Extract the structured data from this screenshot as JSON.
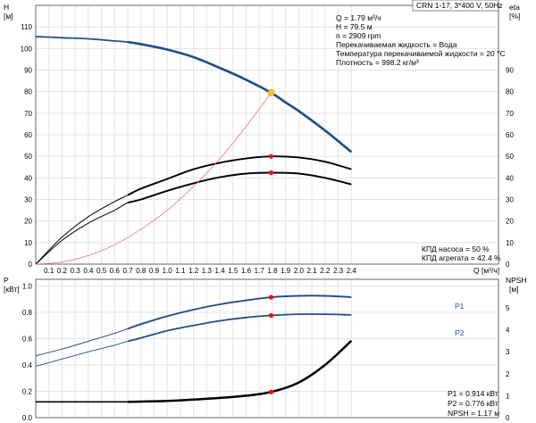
{
  "header": {
    "title": "CRN 1-17, 3*400 V, 50Hz"
  },
  "colors": {
    "head": "#1f4f87",
    "eff_pump": "#000000",
    "eff_unit": "#000000",
    "system": "#ff6b6b",
    "p1": "#1f4f87",
    "p2": "#1f4f87",
    "npsh": "#000000",
    "duty_point": "#ff0000",
    "head_duty_point": "#ffc233",
    "frame": "#666666",
    "grid": "#e3e3e3",
    "text": "#000000"
  },
  "duty_info": [
    "Q = 1.79 м³/ч",
    "H = 79.5 м",
    "n = 2909 rpm",
    "Перекачиваемая жидкость = Вода",
    "Температура перекачиваемой жидкости = 20 °C",
    "Плотность = 998.2 кг/м³"
  ],
  "efficiency_info": [
    "КПД насоса = 50 %",
    "КПД агрегата = 42.4 %"
  ],
  "power_info": [
    "P1 = 0.914 кВт",
    "P2 = 0.776 кВт",
    "NPSH = 1.17 м"
  ],
  "chart_data": [
    {
      "type": "line",
      "axes": {
        "x": {
          "label": "Q [м³/ч]",
          "range": [
            0,
            2.6
          ],
          "ticks": [
            0.1,
            0.2,
            0.3,
            0.4,
            0.5,
            0.6,
            0.7,
            0.8,
            0.9,
            1.0,
            1.1,
            1.2,
            1.3,
            1.4,
            1.5,
            1.6,
            1.7,
            1.8,
            1.9,
            2.0,
            2.1,
            2.2,
            2.3,
            2.4
          ]
        },
        "y_left": {
          "label_top": "H",
          "label_unit": "[м]",
          "range": [
            0,
            120
          ],
          "ticks": [
            0,
            10,
            20,
            30,
            40,
            50,
            60,
            70,
            80,
            90,
            100,
            110
          ]
        },
        "y_right": {
          "label_top": "eta",
          "label_unit": "[%]",
          "range": [
            0,
            120
          ],
          "ticks": [
            0,
            10,
            20,
            30,
            40,
            50,
            60,
            70,
            80,
            90
          ]
        }
      },
      "grid": true,
      "series": [
        {
          "key": "head",
          "axis": "left",
          "x": [
            0,
            0.2,
            0.4,
            0.6,
            0.7,
            0.8,
            1.0,
            1.2,
            1.4,
            1.6,
            1.79,
            1.9,
            2.0,
            2.2,
            2.4
          ],
          "y": [
            105.5,
            105,
            104.5,
            103.5,
            103,
            102,
            99.5,
            96,
            91,
            85.5,
            79.5,
            75,
            71,
            62,
            52
          ]
        },
        {
          "key": "eff_pump",
          "axis": "right",
          "x": [
            0,
            0.2,
            0.4,
            0.6,
            0.7,
            0.8,
            1.0,
            1.2,
            1.4,
            1.6,
            1.79,
            2.0,
            2.2,
            2.4
          ],
          "y": [
            0,
            12.5,
            22,
            29,
            32,
            35,
            39.5,
            44,
            47,
            49,
            50,
            49.5,
            47.5,
            44
          ]
        },
        {
          "key": "eff_unit",
          "axis": "right",
          "x": [
            0,
            0.2,
            0.4,
            0.6,
            0.7,
            0.8,
            1.0,
            1.2,
            1.4,
            1.6,
            1.79,
            2.0,
            2.2,
            2.4
          ],
          "y": [
            0,
            11,
            19,
            25,
            28.5,
            30,
            34,
            37.5,
            40.3,
            42,
            42.4,
            42,
            40,
            37
          ]
        },
        {
          "key": "system",
          "axis": "left",
          "x": [
            0,
            0.2,
            0.4,
            0.6,
            0.8,
            1.0,
            1.2,
            1.4,
            1.6,
            1.79
          ],
          "y": [
            0,
            1,
            4,
            9,
            16.2,
            25,
            36,
            48.9,
            63.9,
            79.5
          ]
        }
      ],
      "duty_points": [
        {
          "series": "head",
          "x": 1.79,
          "y": 79.5
        },
        {
          "series": "eff_pump",
          "x": 1.79,
          "y": 50
        },
        {
          "series": "eff_unit",
          "x": 1.79,
          "y": 42.4
        }
      ]
    },
    {
      "type": "line",
      "axes": {
        "x": {
          "range": [
            0,
            2.6
          ]
        },
        "y_left": {
          "label_top": "P",
          "label_unit": "[кВт]",
          "range": [
            0,
            1.05
          ],
          "ticks": [
            0.0,
            0.2,
            0.4,
            0.6,
            0.8,
            1.0
          ]
        },
        "y_right": {
          "label_top": "NPSH",
          "label_unit": "[м]",
          "range": [
            0,
            6.3
          ],
          "ticks": [
            0,
            1,
            2,
            3,
            4,
            5
          ]
        }
      },
      "grid": true,
      "series": [
        {
          "key": "p1",
          "name": "P1",
          "axis": "left",
          "x": [
            0,
            0.2,
            0.4,
            0.6,
            0.7,
            0.8,
            1.0,
            1.2,
            1.4,
            1.6,
            1.79,
            2.0,
            2.2,
            2.4
          ],
          "y": [
            0.47,
            0.52,
            0.58,
            0.64,
            0.675,
            0.71,
            0.77,
            0.82,
            0.86,
            0.89,
            0.914,
            0.925,
            0.925,
            0.915
          ]
        },
        {
          "key": "p2",
          "name": "P2",
          "axis": "left",
          "x": [
            0,
            0.2,
            0.4,
            0.6,
            0.7,
            0.8,
            1.0,
            1.2,
            1.4,
            1.6,
            1.79,
            2.0,
            2.2,
            2.4
          ],
          "y": [
            0.39,
            0.445,
            0.5,
            0.55,
            0.58,
            0.605,
            0.66,
            0.7,
            0.735,
            0.76,
            0.776,
            0.785,
            0.785,
            0.78
          ]
        },
        {
          "key": "npsh",
          "axis": "right",
          "x": [
            0,
            0.2,
            0.4,
            0.6,
            0.7,
            0.8,
            1.0,
            1.2,
            1.4,
            1.6,
            1.79,
            2.0,
            2.2,
            2.4
          ],
          "y": [
            0.72,
            0.72,
            0.72,
            0.72,
            0.72,
            0.73,
            0.76,
            0.82,
            0.9,
            1.0,
            1.17,
            1.6,
            2.4,
            3.5
          ]
        }
      ],
      "duty_points": [
        {
          "series": "p1",
          "x": 1.79,
          "y": 0.914
        },
        {
          "series": "p2",
          "x": 1.79,
          "y": 0.776
        },
        {
          "series": "npsh",
          "x": 1.79,
          "y": 1.17
        }
      ]
    }
  ]
}
